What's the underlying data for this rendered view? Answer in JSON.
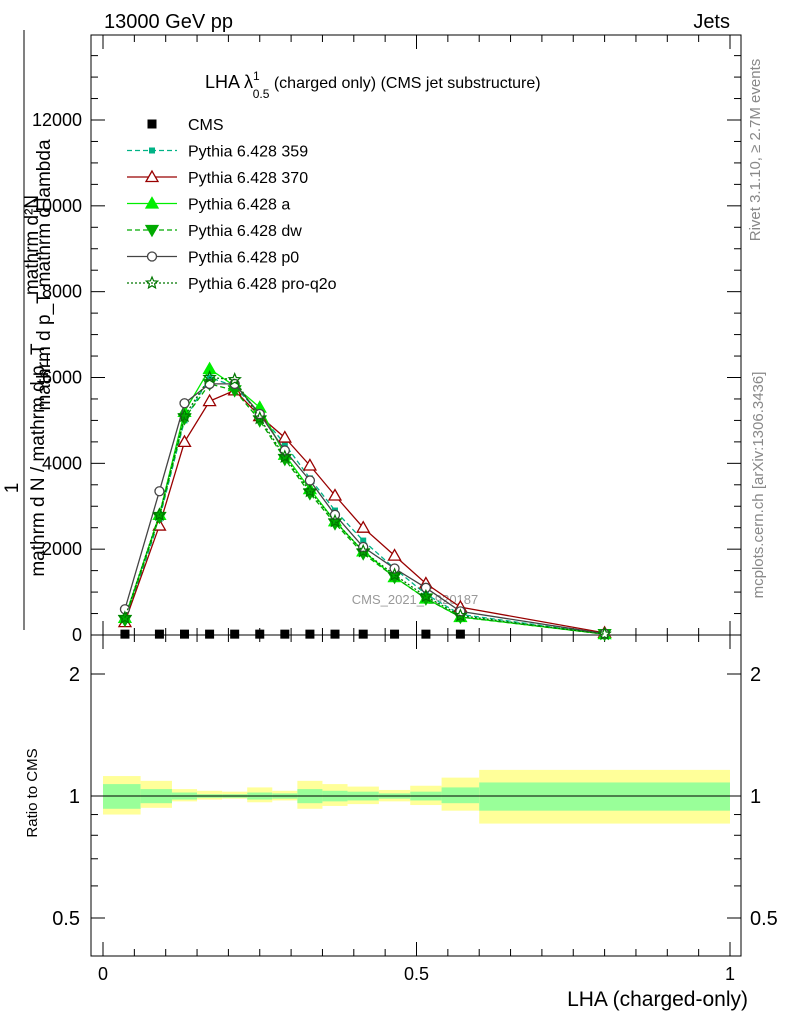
{
  "header": {
    "energy": "13000 GeV pp",
    "category": "Jets",
    "rivet": "Rivet 3.1.10, ≥ 2.7M events",
    "source": "mcplots.cern.ch [arXiv:1306.3436]",
    "watermark": "CMS_2021_I1920187"
  },
  "title": {
    "main": "LHA λ",
    "sup": "1",
    "sub": "0.5",
    "rest": " (charged only) (CMS jet substructure)"
  },
  "ylabel": {
    "line1": "mathrm d²N",
    "line2": "mathrm d p_T mathrm d lambda",
    "prefix": "1",
    "denominator": "mathrm d N / mathrm d p_T"
  },
  "xlabel": "LHA (charged-only)",
  "ratio_ylabel": "Ratio to CMS",
  "colors": {
    "cms": "#000000",
    "p359": "#00b386",
    "p370": "#990000",
    "pa": "#00ee00",
    "pdw": "#00aa00",
    "pp0": "#444444",
    "pq2o": "#007700",
    "band_inner": "#99ff99",
    "band_outer": "#ffff99"
  },
  "chart_data": {
    "type": "line",
    "xlim": [
      -0.02,
      1.0
    ],
    "main_ylim": [
      0,
      14000
    ],
    "ratio_ylim": [
      0.43,
      2.3
    ],
    "ratio_log": true,
    "x_ticks": [
      "0",
      "0.5",
      "1"
    ],
    "x_tick_values": [
      0,
      0.5,
      1
    ],
    "main_y_ticks": [
      "0",
      "2000",
      "4000",
      "6000",
      "8000",
      "10000",
      "12000"
    ],
    "main_y_tick_values": [
      0,
      2000,
      4000,
      6000,
      8000,
      10000,
      12000
    ],
    "ratio_y_ticks": [
      "0.5",
      "1",
      "2"
    ],
    "ratio_y_tick_values": [
      0.5,
      1,
      2
    ],
    "x": [
      0.035,
      0.09,
      0.13,
      0.17,
      0.21,
      0.25,
      0.29,
      0.33,
      0.37,
      0.415,
      0.465,
      0.515,
      0.57,
      0.8
    ],
    "bin_edges": [
      0,
      0.06,
      0.11,
      0.15,
      0.19,
      0.23,
      0.27,
      0.31,
      0.35,
      0.39,
      0.44,
      0.49,
      0.54,
      0.6,
      1.0
    ],
    "series": [
      {
        "name": "CMS",
        "key": "cms",
        "values": [
          20,
          20,
          20,
          20,
          20,
          20,
          20,
          20,
          20,
          20,
          20,
          20,
          20,
          null
        ]
      },
      {
        "name": "Pythia 6.428 359",
        "key": "p359",
        "values": [
          300,
          2700,
          5000,
          6000,
          5800,
          5150,
          4450,
          3650,
          2900,
          2200,
          1550,
          950,
          480,
          20
        ]
      },
      {
        "name": "Pythia 6.428 370",
        "key": "p370",
        "values": [
          300,
          2550,
          4500,
          5450,
          5700,
          5100,
          4600,
          3950,
          3250,
          2500,
          1850,
          1200,
          650,
          50
        ]
      },
      {
        "name": "Pythia 6.428 a",
        "key": "pa",
        "values": [
          400,
          2800,
          5200,
          6200,
          5800,
          5300,
          4200,
          3400,
          2650,
          1950,
          1350,
          850,
          420,
          20
        ]
      },
      {
        "name": "Pythia 6.428 dw",
        "key": "pdw",
        "values": [
          350,
          2750,
          5050,
          5850,
          5700,
          5000,
          4100,
          3300,
          2600,
          1900,
          1350,
          850,
          420,
          20
        ]
      },
      {
        "name": "Pythia 6.428 p0",
        "key": "pp0",
        "values": [
          600,
          3350,
          5400,
          5850,
          5850,
          5150,
          4300,
          3600,
          2800,
          2050,
          1550,
          1100,
          550,
          30
        ]
      },
      {
        "name": "Pythia 6.428 pro-q2o",
        "key": "pq2o",
        "values": [
          400,
          2800,
          5100,
          6000,
          5950,
          5050,
          4150,
          3350,
          2650,
          1950,
          1400,
          900,
          450,
          20
        ]
      }
    ],
    "ratio_band_inner": [
      [
        0.93,
        1.07
      ],
      [
        0.96,
        1.04
      ],
      [
        0.98,
        1.02
      ],
      [
        0.99,
        1.01
      ],
      [
        0.99,
        1.01
      ],
      [
        0.98,
        1.02
      ],
      [
        0.985,
        1.015
      ],
      [
        0.96,
        1.04
      ],
      [
        0.97,
        1.03
      ],
      [
        0.975,
        1.025
      ],
      [
        0.985,
        1.015
      ],
      [
        0.975,
        1.025
      ],
      [
        0.96,
        1.05
      ],
      [
        0.92,
        1.08
      ]
    ],
    "ratio_band_outer": [
      [
        0.9,
        1.12
      ],
      [
        0.935,
        1.09
      ],
      [
        0.97,
        1.04
      ],
      [
        0.98,
        1.03
      ],
      [
        0.985,
        1.025
      ],
      [
        0.965,
        1.05
      ],
      [
        0.975,
        1.03
      ],
      [
        0.93,
        1.09
      ],
      [
        0.945,
        1.07
      ],
      [
        0.955,
        1.055
      ],
      [
        0.97,
        1.035
      ],
      [
        0.95,
        1.06
      ],
      [
        0.92,
        1.11
      ],
      [
        0.855,
        1.16
      ]
    ]
  }
}
